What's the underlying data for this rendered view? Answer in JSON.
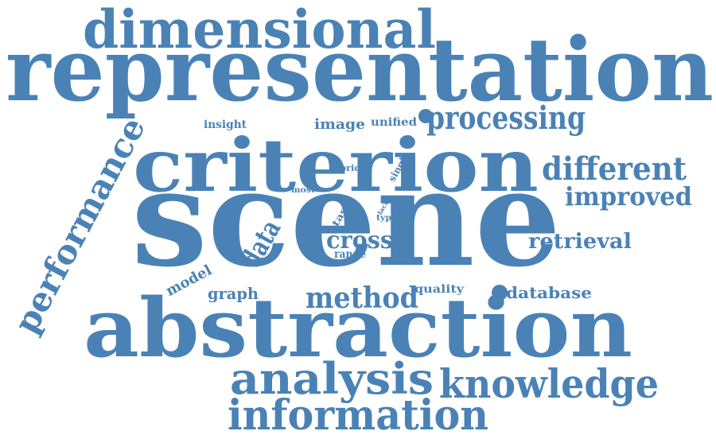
{
  "word_cloud": {
    "color": "#4a82b6",
    "words": [
      "scene",
      "representation",
      "abstraction",
      "criterion",
      "dimensional",
      "information",
      "knowledge",
      "analysis",
      "performance",
      "processing",
      "different",
      "improved",
      "method",
      "retrieval",
      "cross",
      "data",
      "database",
      "graph",
      "model",
      "quality",
      "image",
      "unified",
      "insight",
      "range",
      "prior",
      "most",
      "single",
      "task",
      "type",
      "lack"
    ]
  }
}
